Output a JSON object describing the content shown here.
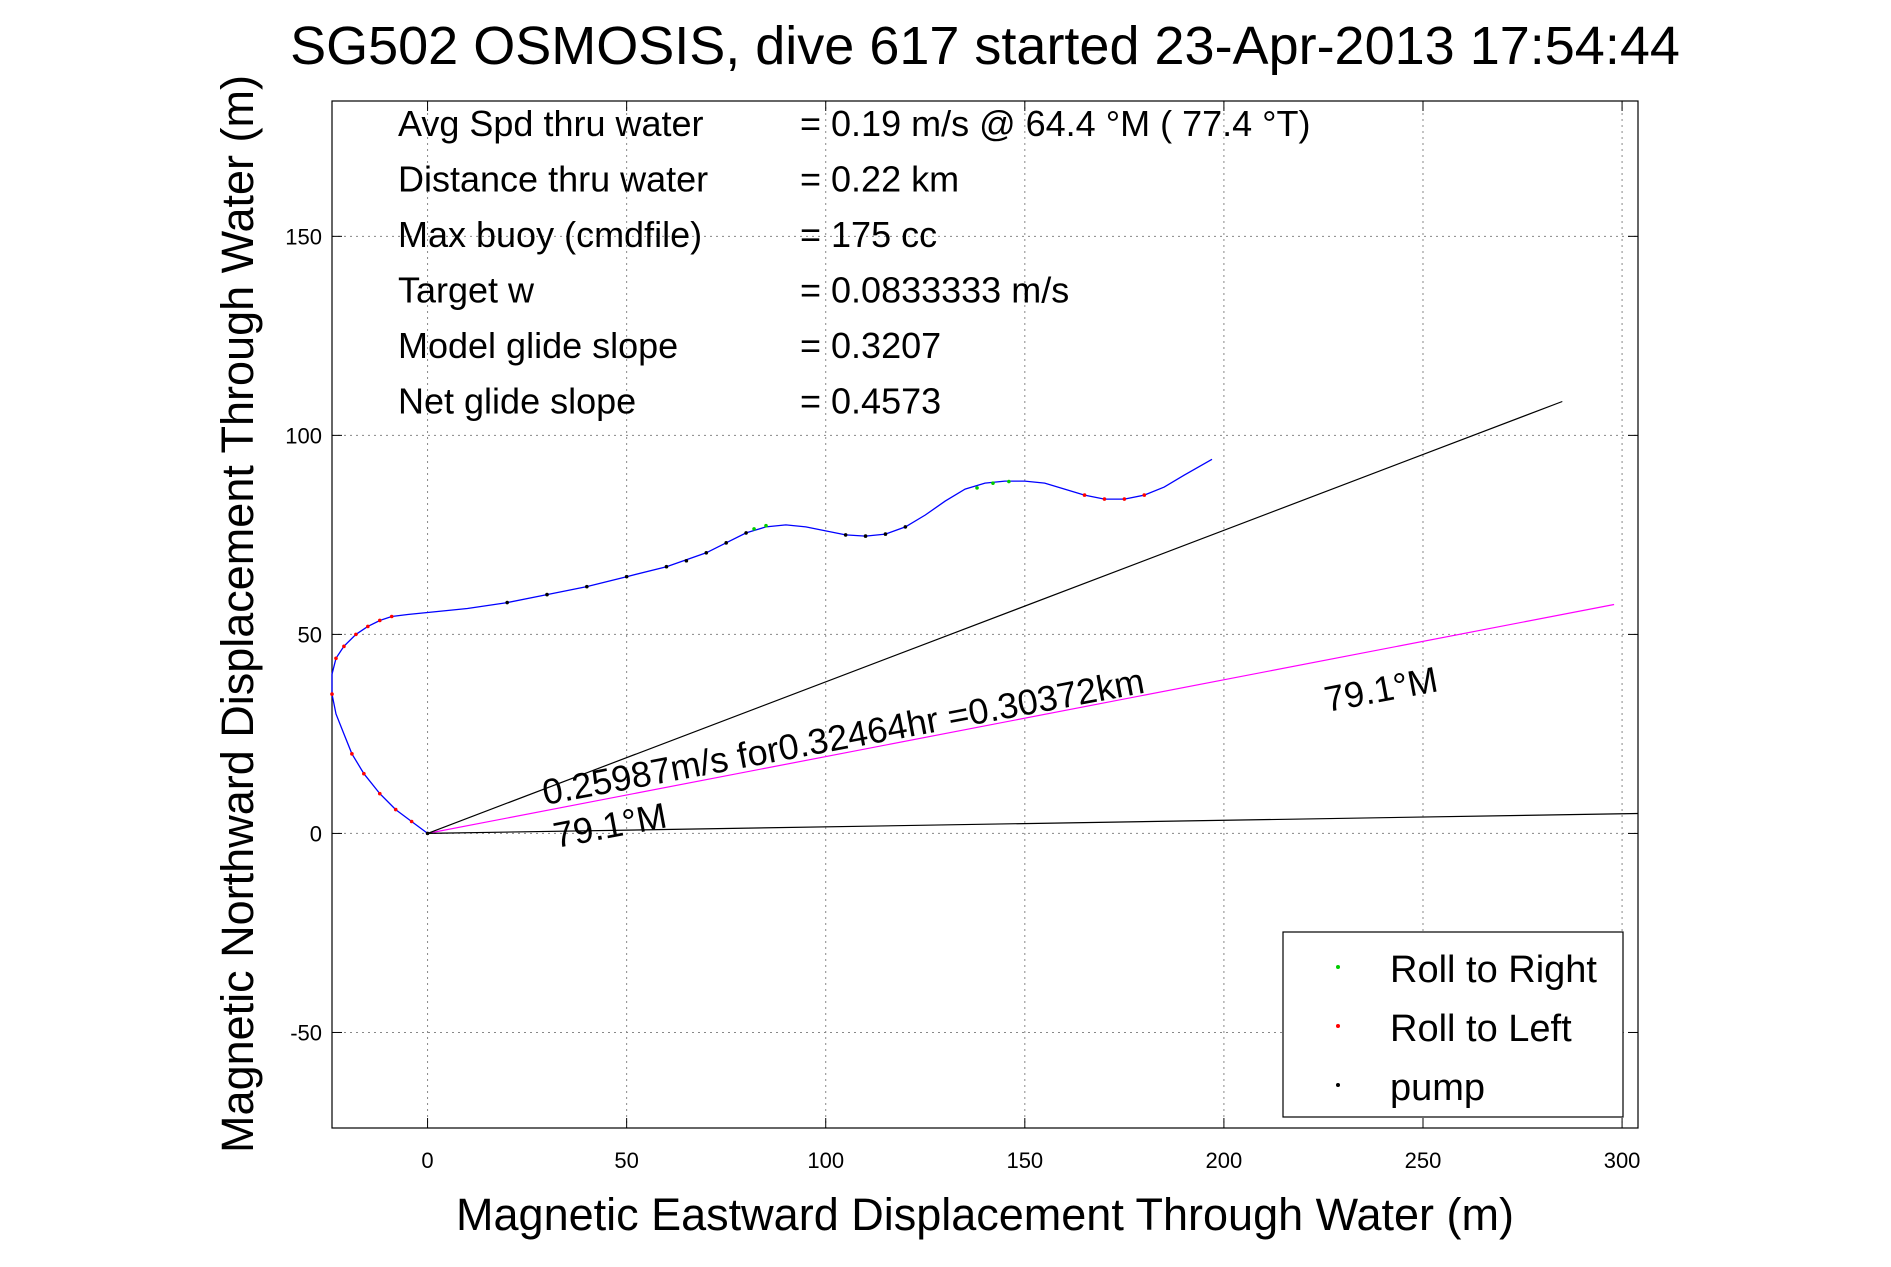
{
  "chart_data": {
    "type": "line",
    "title": "SG502 OSMOSIS, dive 617 started 23-Apr-2013 17:54:44",
    "xlabel": "Magnetic Eastward Displacement Through Water (m)",
    "ylabel": "Magnetic Northward Displacement Through Water (m)",
    "xlim": [
      -24,
      304
    ],
    "ylim": [
      -74,
      184
    ],
    "xticks": [
      0,
      50,
      100,
      150,
      200,
      250,
      300
    ],
    "yticks": [
      -50,
      0,
      50,
      100,
      150
    ],
    "grid": true,
    "legend_position": "bottom-right",
    "colors": {
      "track": "#0000ff",
      "roll_right": "#00cc00",
      "roll_left": "#ff0000",
      "pump": "#000000",
      "current_line": "#ff00ff",
      "reference_line": "#000000"
    },
    "stats": [
      {
        "label": "Avg Spd thru water",
        "value": "=  0.19 m/s @  64.4 °M ( 77.4 °T)"
      },
      {
        "label": "Distance thru water",
        "value": "=  0.22 km"
      },
      {
        "label": "Max buoy (cmdfile)",
        "value": "= 175 cc"
      },
      {
        "label": "Target w",
        "value": "= 0.0833333 m/s"
      },
      {
        "label": "Model glide slope",
        "value": "= 0.3207"
      },
      {
        "label": "Net glide slope",
        "value": "= 0.4573"
      }
    ],
    "annotations": {
      "current_text": "0.25987m/s for0.32464hr =0.30372km",
      "heading_near_origin": "79.1°M",
      "heading_far": "79.1°M"
    },
    "legend": [
      {
        "label": "Roll to Right",
        "color": "#00cc00"
      },
      {
        "label": "Roll to Left",
        "color": "#ff0000"
      },
      {
        "label": "pump",
        "color": "#000000"
      }
    ],
    "series": [
      {
        "name": "",
        "x": [
          0,
          -4,
          -8,
          -12,
          -16,
          -19,
          -21,
          -23,
          -24,
          -24,
          -23,
          -21,
          -18,
          -15,
          -12,
          -9,
          -5,
          0,
          10,
          20,
          30,
          40,
          50,
          60,
          70,
          75,
          80,
          85,
          90,
          95,
          100,
          105,
          110,
          115,
          120,
          125,
          130,
          135,
          140,
          145,
          150,
          155,
          160,
          165,
          170,
          175,
          180,
          185,
          190,
          197
        ],
        "y": [
          0,
          3,
          6,
          10,
          15,
          20,
          25,
          30,
          35,
          40,
          44,
          47,
          50,
          52,
          53.5,
          54.5,
          55,
          55.5,
          56.5,
          58,
          60,
          62,
          64.5,
          67,
          70.5,
          73,
          75.5,
          77,
          77.5,
          77,
          76,
          75,
          74.7,
          75.2,
          77,
          80,
          83.5,
          86.5,
          88,
          88.5,
          88.5,
          88,
          86.5,
          85,
          84,
          84,
          85,
          87,
          90,
          94
        ]
      },
      {
        "name": "Roll to Right",
        "x": [
          82,
          85,
          138,
          142,
          146
        ],
        "y": [
          76.5,
          77.3,
          86.8,
          88,
          88.4
        ]
      },
      {
        "name": "Roll to Left",
        "x": [
          -24,
          -23,
          -21,
          -18,
          -15,
          -12,
          -9,
          -19,
          -16,
          -12,
          -8,
          -4,
          165,
          170,
          175,
          180
        ],
        "y": [
          35,
          44,
          47,
          50,
          52,
          53.5,
          54.5,
          20,
          15,
          10,
          6,
          3,
          85,
          84,
          84,
          85
        ]
      },
      {
        "name": "pump",
        "x": [
          20,
          30,
          40,
          50,
          60,
          65,
          70,
          75,
          80,
          105,
          110,
          115,
          120,
          0
        ],
        "y": [
          58,
          60,
          62,
          64.5,
          67,
          68.5,
          70.5,
          73,
          75.5,
          75,
          74.7,
          75.2,
          77,
          0
        ]
      },
      {
        "name": "",
        "x": [
          0,
          298
        ],
        "y": [
          0,
          57.5
        ]
      },
      {
        "name": "",
        "x": [
          0,
          285
        ],
        "y": [
          0,
          108.5
        ]
      },
      {
        "name": "",
        "x": [
          0,
          304
        ],
        "y": [
          0,
          5
        ]
      }
    ]
  }
}
